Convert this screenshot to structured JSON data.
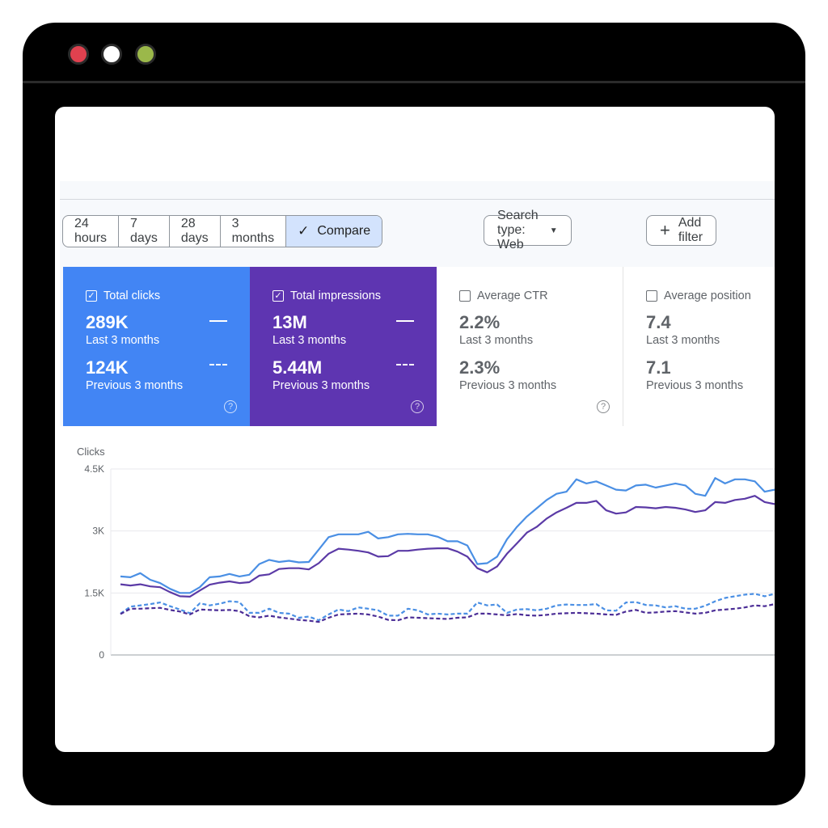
{
  "window": {
    "controls": [
      "close",
      "minimize",
      "maximize"
    ]
  },
  "filters": {
    "ranges": [
      "24 hours",
      "7 days",
      "28 days",
      "3 months"
    ],
    "compare_label": "Compare",
    "search_type_label": "Search type: Web",
    "add_filter_label": "Add filter"
  },
  "metrics": [
    {
      "label": "Total clicks",
      "checked": true,
      "color": "#4285f4",
      "current_value": "289K",
      "current_label": "Last 3 months",
      "previous_value": "124K",
      "previous_label": "Previous 3 months"
    },
    {
      "label": "Total impressions",
      "checked": true,
      "color": "#5e35b1",
      "current_value": "13M",
      "current_label": "Last 3 months",
      "previous_value": "5.44M",
      "previous_label": "Previous 3 months"
    },
    {
      "label": "Average CTR",
      "checked": false,
      "color": "#ffffff",
      "current_value": "2.2%",
      "current_label": "Last 3 months",
      "previous_value": "2.3%",
      "previous_label": "Previous 3 months"
    },
    {
      "label": "Average position",
      "checked": false,
      "color": "#ffffff",
      "current_value": "7.4",
      "current_label": "Last 3 months",
      "previous_value": "7.1",
      "previous_label": "Previous 3 months"
    }
  ],
  "chart_data": {
    "type": "line",
    "ylabel": "Clicks",
    "ylim": [
      0,
      4500
    ],
    "y_ticks": [
      0,
      1500,
      3000,
      4500
    ],
    "y_tick_labels": [
      "0",
      "1.5K",
      "3K",
      "4.5K"
    ],
    "grid": true,
    "series": [
      {
        "style": "solid",
        "color": "#4a8fe4",
        "values": [
          1900,
          1880,
          1980,
          1820,
          1740,
          1600,
          1500,
          1500,
          1640,
          1880,
          1900,
          1960,
          1900,
          1940,
          2200,
          2300,
          2250,
          2280,
          2240,
          2250,
          2550,
          2850,
          2920,
          2920,
          2920,
          2980,
          2820,
          2850,
          2920,
          2930,
          2920,
          2920,
          2860,
          2750,
          2750,
          2650,
          2200,
          2220,
          2380,
          2800,
          3100,
          3350,
          3550,
          3750,
          3900,
          3950,
          4250,
          4150,
          4200,
          4100,
          4000,
          3980,
          4100,
          4120,
          4050,
          4100,
          4150,
          4100,
          3900,
          3850,
          4280,
          4150,
          4250,
          4250,
          4200,
          3950,
          4000
        ]
      },
      {
        "style": "solid",
        "color": "#5b3aa6",
        "values": [
          1710,
          1680,
          1710,
          1660,
          1640,
          1520,
          1420,
          1410,
          1560,
          1700,
          1750,
          1780,
          1740,
          1760,
          1920,
          1950,
          2080,
          2100,
          2100,
          2070,
          2220,
          2450,
          2570,
          2550,
          2520,
          2480,
          2380,
          2390,
          2520,
          2520,
          2550,
          2570,
          2580,
          2580,
          2500,
          2380,
          2100,
          2000,
          2140,
          2450,
          2700,
          2960,
          3100,
          3300,
          3450,
          3560,
          3680,
          3680,
          3730,
          3500,
          3420,
          3450,
          3580,
          3570,
          3550,
          3580,
          3560,
          3520,
          3460,
          3500,
          3700,
          3680,
          3750,
          3780,
          3850,
          3700,
          3650
        ]
      },
      {
        "style": "dashed",
        "color": "#4a8fe4",
        "values": [
          1000,
          1170,
          1200,
          1230,
          1270,
          1180,
          1100,
          1010,
          1250,
          1200,
          1240,
          1300,
          1280,
          1020,
          1020,
          1120,
          1020,
          1000,
          900,
          930,
          840,
          980,
          1100,
          1060,
          1150,
          1120,
          1080,
          950,
          950,
          1120,
          1080,
          980,
          1000,
          980,
          1000,
          1000,
          1270,
          1200,
          1220,
          1020,
          1100,
          1110,
          1080,
          1120,
          1200,
          1220,
          1210,
          1210,
          1230,
          1080,
          1070,
          1270,
          1280,
          1210,
          1200,
          1150,
          1180,
          1120,
          1120,
          1190,
          1300,
          1380,
          1420,
          1460,
          1480,
          1420,
          1480
        ]
      },
      {
        "style": "dashed",
        "color": "#4b2d96",
        "values": [
          990,
          1120,
          1120,
          1130,
          1140,
          1090,
          1050,
          980,
          1100,
          1090,
          1080,
          1090,
          1060,
          940,
          910,
          950,
          910,
          880,
          850,
          830,
          800,
          900,
          980,
          990,
          1000,
          980,
          930,
          850,
          840,
          910,
          900,
          890,
          880,
          870,
          900,
          910,
          1000,
          1000,
          980,
          960,
          990,
          960,
          950,
          970,
          1000,
          1010,
          1020,
          1010,
          1000,
          980,
          970,
          1050,
          1090,
          1020,
          1030,
          1050,
          1060,
          1030,
          1000,
          1020,
          1080,
          1100,
          1120,
          1150,
          1200,
          1180,
          1230
        ]
      }
    ]
  }
}
